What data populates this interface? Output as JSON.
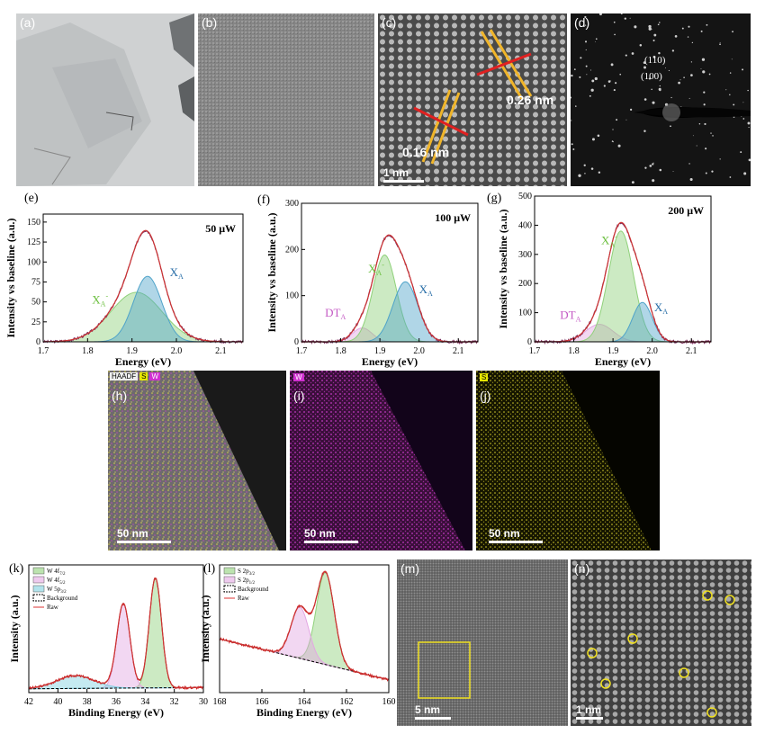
{
  "panels": {
    "a": {
      "label": "(a)"
    },
    "b": {
      "label": "(b)"
    },
    "c": {
      "label": "(c)",
      "annotations": [
        "0.26 nm",
        "0.16 nm"
      ],
      "scale_bar": "1 nm"
    },
    "d": {
      "label": "(d)",
      "annotations": [
        "(110)",
        "(100)"
      ]
    },
    "h": {
      "label": "(h)",
      "legend": [
        "HAADF",
        "S",
        "W"
      ],
      "scale_bar": "50 nm"
    },
    "i": {
      "label": "(i)",
      "legend": [
        "W"
      ],
      "scale_bar": "50 nm"
    },
    "j": {
      "label": "(j)",
      "legend": [
        "S"
      ],
      "scale_bar": "50 nm"
    },
    "m": {
      "label": "(m)",
      "scale_bar": "5 nm"
    },
    "n": {
      "label": "(n)",
      "scale_bar": "1 nm"
    }
  },
  "chart_data": [
    {
      "id": "e",
      "type": "line",
      "label": "(e)",
      "power": "50 μW",
      "xlabel": "Energy (eV)",
      "ylabel": "Intensity vs baseline (a.u.)",
      "xlim": [
        1.7,
        2.15
      ],
      "ylim": [
        0,
        160
      ],
      "xticks": [
        1.7,
        1.8,
        1.9,
        2.0,
        2.1
      ],
      "yticks": [
        0,
        25,
        50,
        75,
        100,
        125,
        150
      ],
      "peaks": [
        {
          "name": "X_A^-",
          "center": 1.91,
          "amp": 62,
          "sigma": 0.058,
          "color": "#8fd17a"
        },
        {
          "name": "X_A",
          "center": 1.935,
          "amp": 82,
          "sigma": 0.032,
          "color": "#4fa3c9"
        }
      ],
      "peak_labels": [
        {
          "text": "X",
          "sub": "A",
          "sup": "-",
          "x": 1.81,
          "y": 48,
          "color": "#6cbf3f"
        },
        {
          "text": "X",
          "sub": "A",
          "x": 1.985,
          "y": 82,
          "color": "#2a6fa8"
        }
      ]
    },
    {
      "id": "f",
      "type": "line",
      "label": "(f)",
      "power": "100 μW",
      "xlabel": "Energy (eV)",
      "ylabel": "Intensity vs baseline (a.u.)",
      "xlim": [
        1.7,
        2.15
      ],
      "ylim": [
        0,
        300
      ],
      "xticks": [
        1.7,
        1.8,
        1.9,
        2.0,
        2.1
      ],
      "yticks": [
        0,
        100,
        200,
        300
      ],
      "peaks": [
        {
          "name": "DT_A",
          "center": 1.855,
          "amp": 30,
          "sigma": 0.025,
          "color": "#e3a6e3"
        },
        {
          "name": "X_A^-",
          "center": 1.912,
          "amp": 188,
          "sigma": 0.03,
          "color": "#8fd17a"
        },
        {
          "name": "X_A",
          "center": 1.965,
          "amp": 130,
          "sigma": 0.032,
          "color": "#4fa3c9"
        }
      ],
      "peak_labels": [
        {
          "text": "DT",
          "sub": "A",
          "x": 1.76,
          "y": 55,
          "color": "#c45ac4"
        },
        {
          "text": "X",
          "sub": "A",
          "sup": "-",
          "x": 1.87,
          "y": 150,
          "color": "#6cbf3f"
        },
        {
          "text": "X",
          "sub": "A",
          "x": 2.0,
          "y": 105,
          "color": "#2a6fa8"
        }
      ]
    },
    {
      "id": "g",
      "type": "line",
      "label": "(g)",
      "power": "200 μW",
      "xlabel": "Energy (eV)",
      "ylabel": "Intensity vs baseline (a.u.)",
      "xlim": [
        1.7,
        2.15
      ],
      "ylim": [
        0,
        500
      ],
      "xticks": [
        1.7,
        1.8,
        1.9,
        2.0,
        2.1
      ],
      "yticks": [
        0,
        100,
        200,
        300,
        400,
        500
      ],
      "peaks": [
        {
          "name": "DT_A",
          "center": 1.865,
          "amp": 60,
          "sigma": 0.035,
          "color": "#e3a6e3"
        },
        {
          "name": "X_A^-",
          "center": 1.92,
          "amp": 380,
          "sigma": 0.032,
          "color": "#8fd17a"
        },
        {
          "name": "X_A",
          "center": 1.975,
          "amp": 135,
          "sigma": 0.025,
          "color": "#4fa3c9"
        }
      ],
      "peak_labels": [
        {
          "text": "DT",
          "sub": "A",
          "x": 1.765,
          "y": 78,
          "color": "#c45ac4"
        },
        {
          "text": "X",
          "sub": "A",
          "sup": "-",
          "x": 1.87,
          "y": 335,
          "color": "#6cbf3f"
        },
        {
          "text": "X",
          "sub": "A",
          "x": 2.005,
          "y": 105,
          "color": "#2a6fa8"
        }
      ]
    },
    {
      "id": "k",
      "type": "line",
      "label": "(k)",
      "reverse_x": true,
      "xlabel": "Binding Energy (eV)",
      "ylabel": "Intensity (a.u.)",
      "xlim": [
        42,
        30
      ],
      "ylim": [
        0,
        1.0
      ],
      "xticks": [
        42,
        40,
        38,
        36,
        34,
        32,
        30
      ],
      "yticks": [],
      "legend": [
        {
          "text": "W 4f",
          "sub": "7/2",
          "color": "#8fd17a"
        },
        {
          "text": "W 4f",
          "sub": "5/2",
          "color": "#e3a6e3"
        },
        {
          "text": "W 5p",
          "sub": "3/2",
          "color": "#7fd0e0"
        },
        {
          "text": "Background",
          "dash": true
        },
        {
          "text": "Raw",
          "line": "#d33"
        }
      ],
      "peaks": [
        {
          "name": "W 4f7/2",
          "center": 33.3,
          "amp": 0.86,
          "sigma": 0.42,
          "color": "#8fd17a"
        },
        {
          "name": "W 4f5/2",
          "center": 35.5,
          "amp": 0.66,
          "sigma": 0.45,
          "color": "#e3a6e3"
        },
        {
          "name": "W 5p3/2",
          "center": 38.8,
          "amp": 0.1,
          "sigma": 1.3,
          "color": "#7fd0e0"
        }
      ],
      "baseline": [
        0.03,
        0.04
      ]
    },
    {
      "id": "l",
      "type": "line",
      "label": "(l)",
      "reverse_x": true,
      "xlabel": "Binding Energy (eV)",
      "ylabel": "Intensity (a.u.)",
      "xlim": [
        168,
        160
      ],
      "ylim": [
        0,
        1.0
      ],
      "xticks": [
        168,
        166,
        164,
        162,
        160
      ],
      "yticks": [],
      "legend": [
        {
          "text": "S 2p",
          "sub": "3/2",
          "color": "#8fd17a"
        },
        {
          "text": "S 2p",
          "sub": "1/2",
          "color": "#e3a6e3"
        },
        {
          "text": "Background",
          "dash": true
        },
        {
          "text": "Raw",
          "line": "#d33"
        }
      ],
      "peaks": [
        {
          "name": "S 2p3/2",
          "center": 163.0,
          "amp": 0.72,
          "sigma": 0.42,
          "color": "#8fd17a"
        },
        {
          "name": "S 2p1/2",
          "center": 164.2,
          "amp": 0.4,
          "sigma": 0.42,
          "color": "#e3a6e3"
        }
      ],
      "baseline": [
        0.42,
        0.1
      ]
    }
  ]
}
